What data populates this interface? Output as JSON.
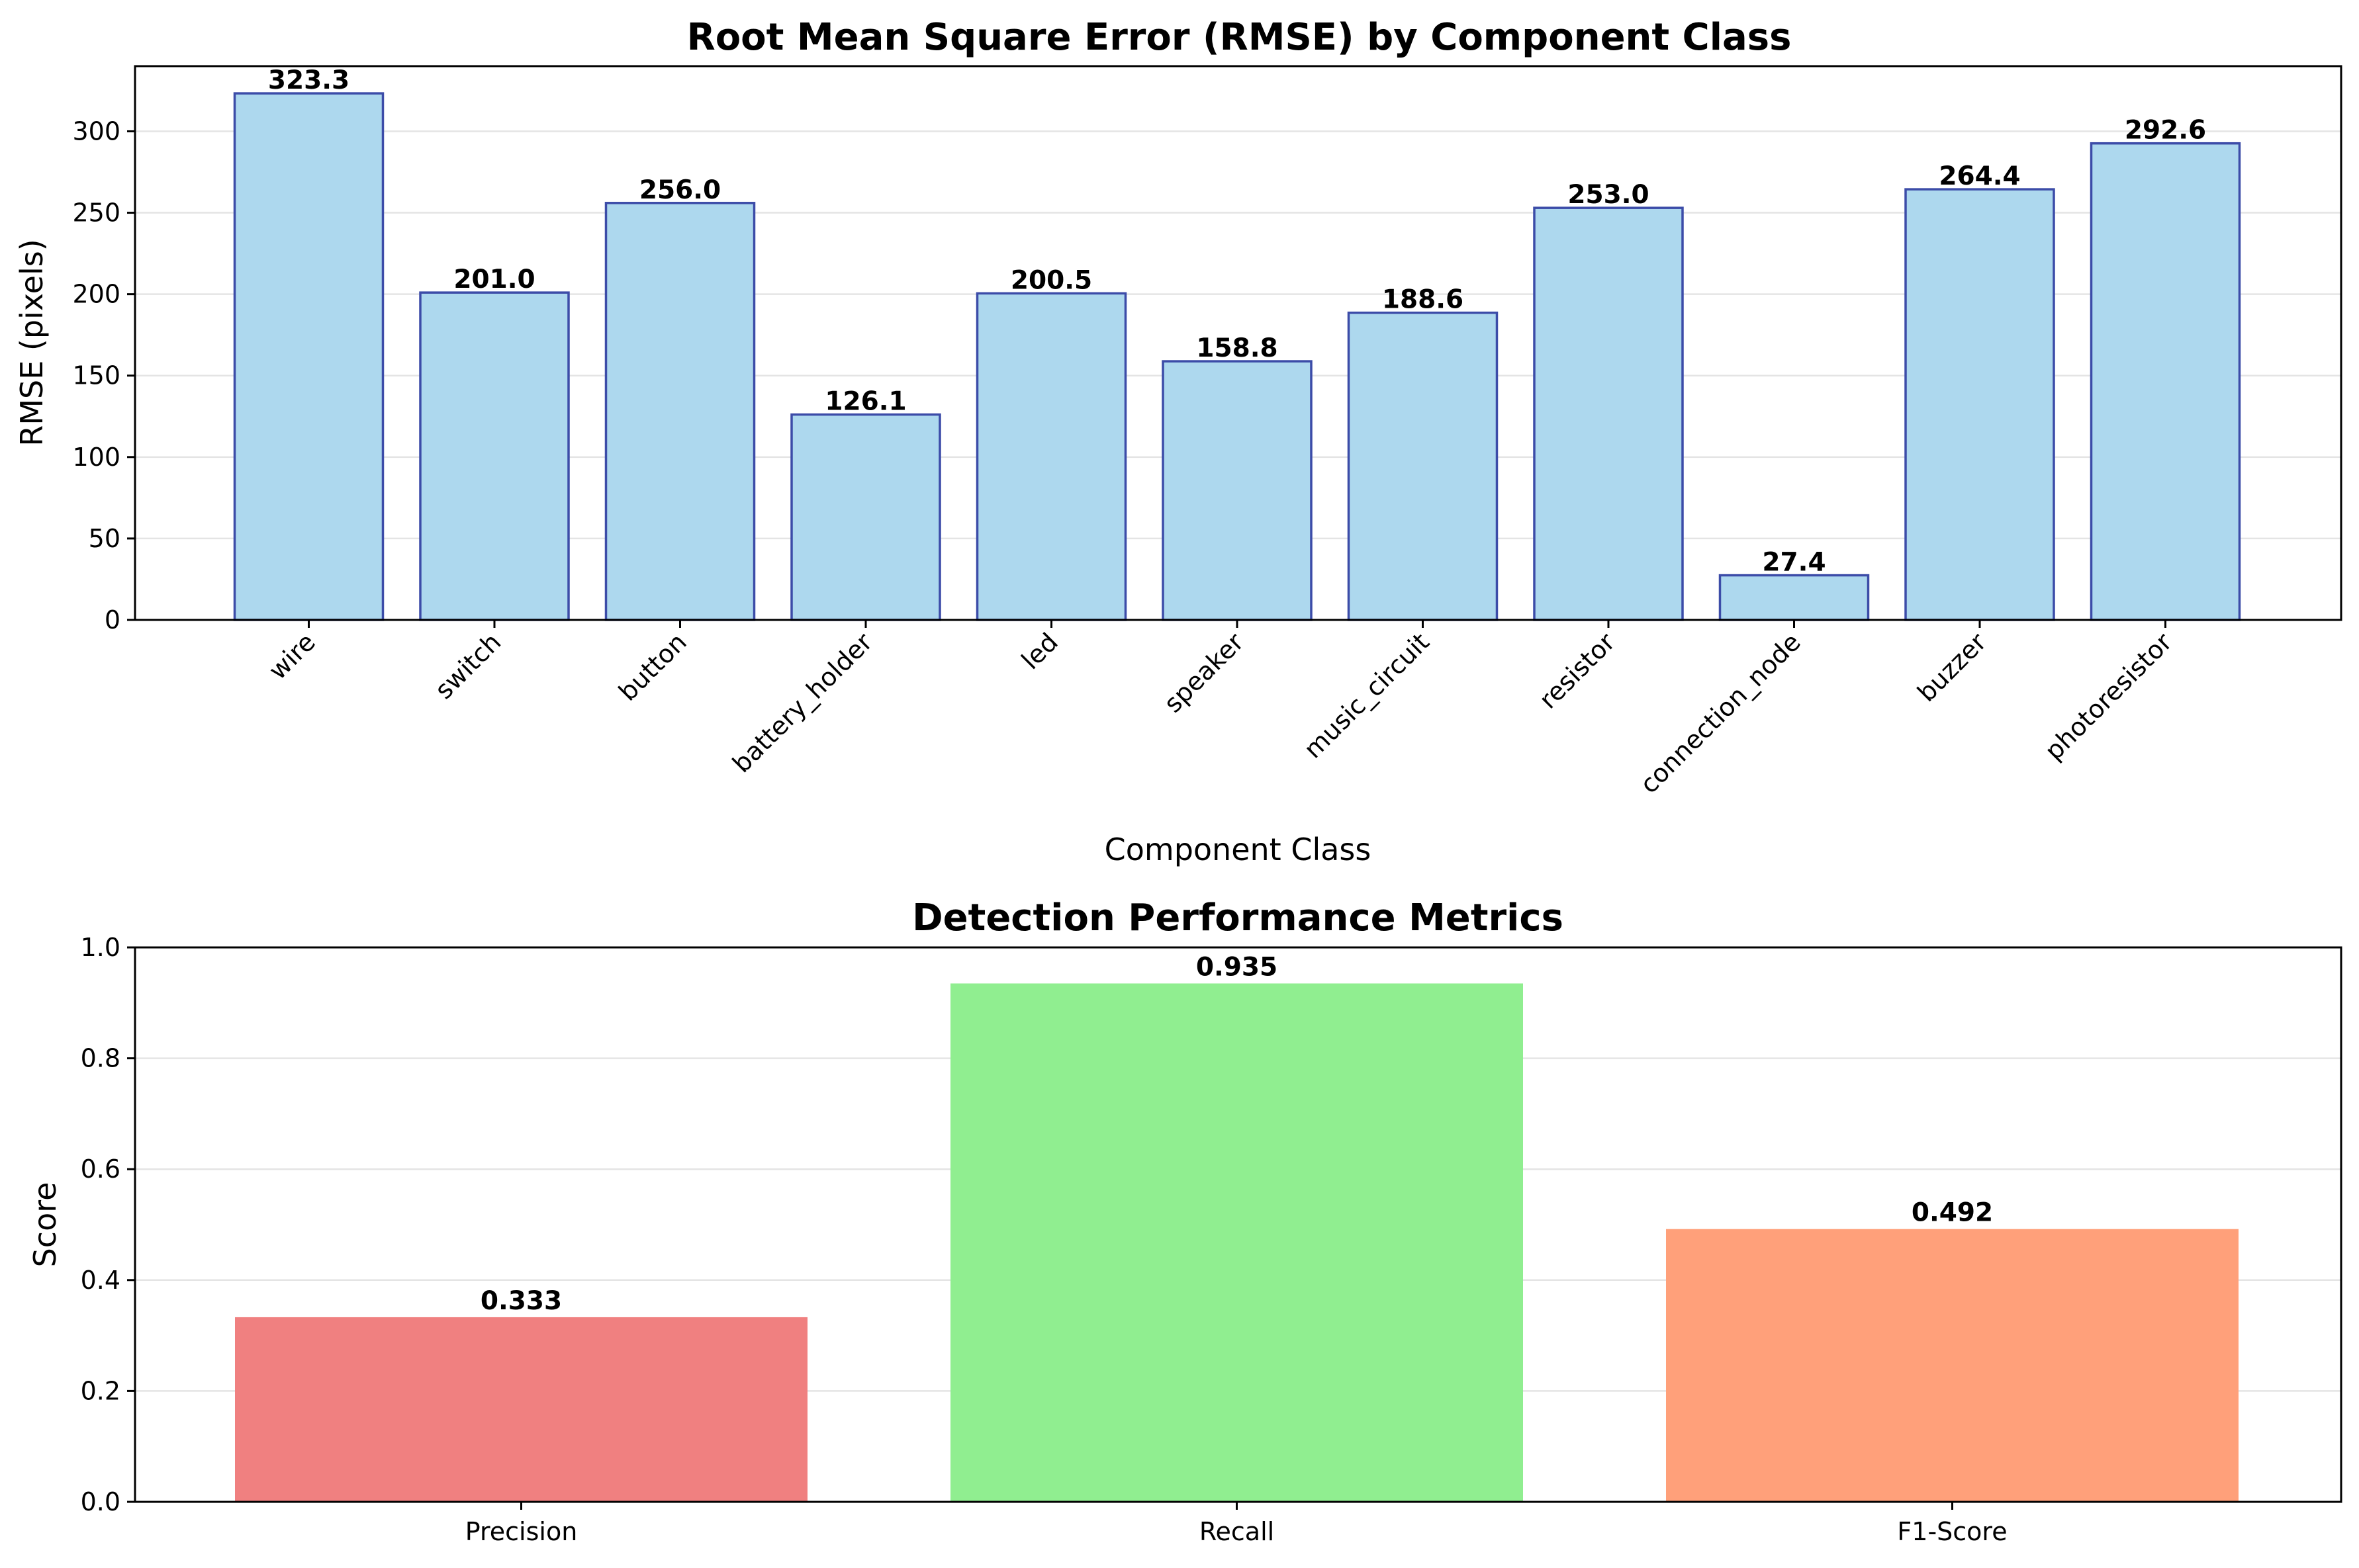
{
  "chart_data": [
    {
      "type": "bar",
      "title": "Root Mean Square Error (RMSE) by Component Class",
      "xlabel": "Component Class",
      "ylabel": "RMSE (pixels)",
      "categories": [
        "wire",
        "switch",
        "button",
        "battery_holder",
        "led",
        "speaker",
        "music_circuit",
        "resistor",
        "connection_node",
        "buzzer",
        "photoresistor"
      ],
      "values": [
        323.3,
        201.0,
        256.0,
        126.1,
        200.5,
        158.8,
        188.6,
        253.0,
        27.4,
        264.4,
        292.6
      ],
      "value_labels": [
        "323.3",
        "201.0",
        "256.0",
        "126.1",
        "200.5",
        "158.8",
        "188.6",
        "253.0",
        "27.4",
        "264.4",
        "292.6"
      ],
      "ylim": [
        0,
        340
      ],
      "yticks": [
        0,
        50,
        100,
        150,
        200,
        250,
        300
      ],
      "ytick_labels": [
        "0",
        "50",
        "100",
        "150",
        "200",
        "250",
        "300"
      ],
      "xtick_rotation": 45,
      "grid": "y",
      "colors": {
        "fill": "#add8ee",
        "edge": "#3c4ca8"
      }
    },
    {
      "type": "bar",
      "title": "Detection Performance Metrics",
      "xlabel": "",
      "ylabel": "Score",
      "categories": [
        "Precision",
        "Recall",
        "F1-Score"
      ],
      "values": [
        0.333,
        0.935,
        0.492
      ],
      "value_labels": [
        "0.333",
        "0.935",
        "0.492"
      ],
      "ylim": [
        0,
        1.0
      ],
      "yticks": [
        0,
        0.2,
        0.4,
        0.6,
        0.8,
        1.0
      ],
      "ytick_labels": [
        "0.0",
        "0.2",
        "0.4",
        "0.6",
        "0.8",
        "1.0"
      ],
      "grid": "y",
      "colors": {
        "bars": [
          "#f08080",
          "#90ee90",
          "#ffa07a"
        ]
      }
    }
  ]
}
